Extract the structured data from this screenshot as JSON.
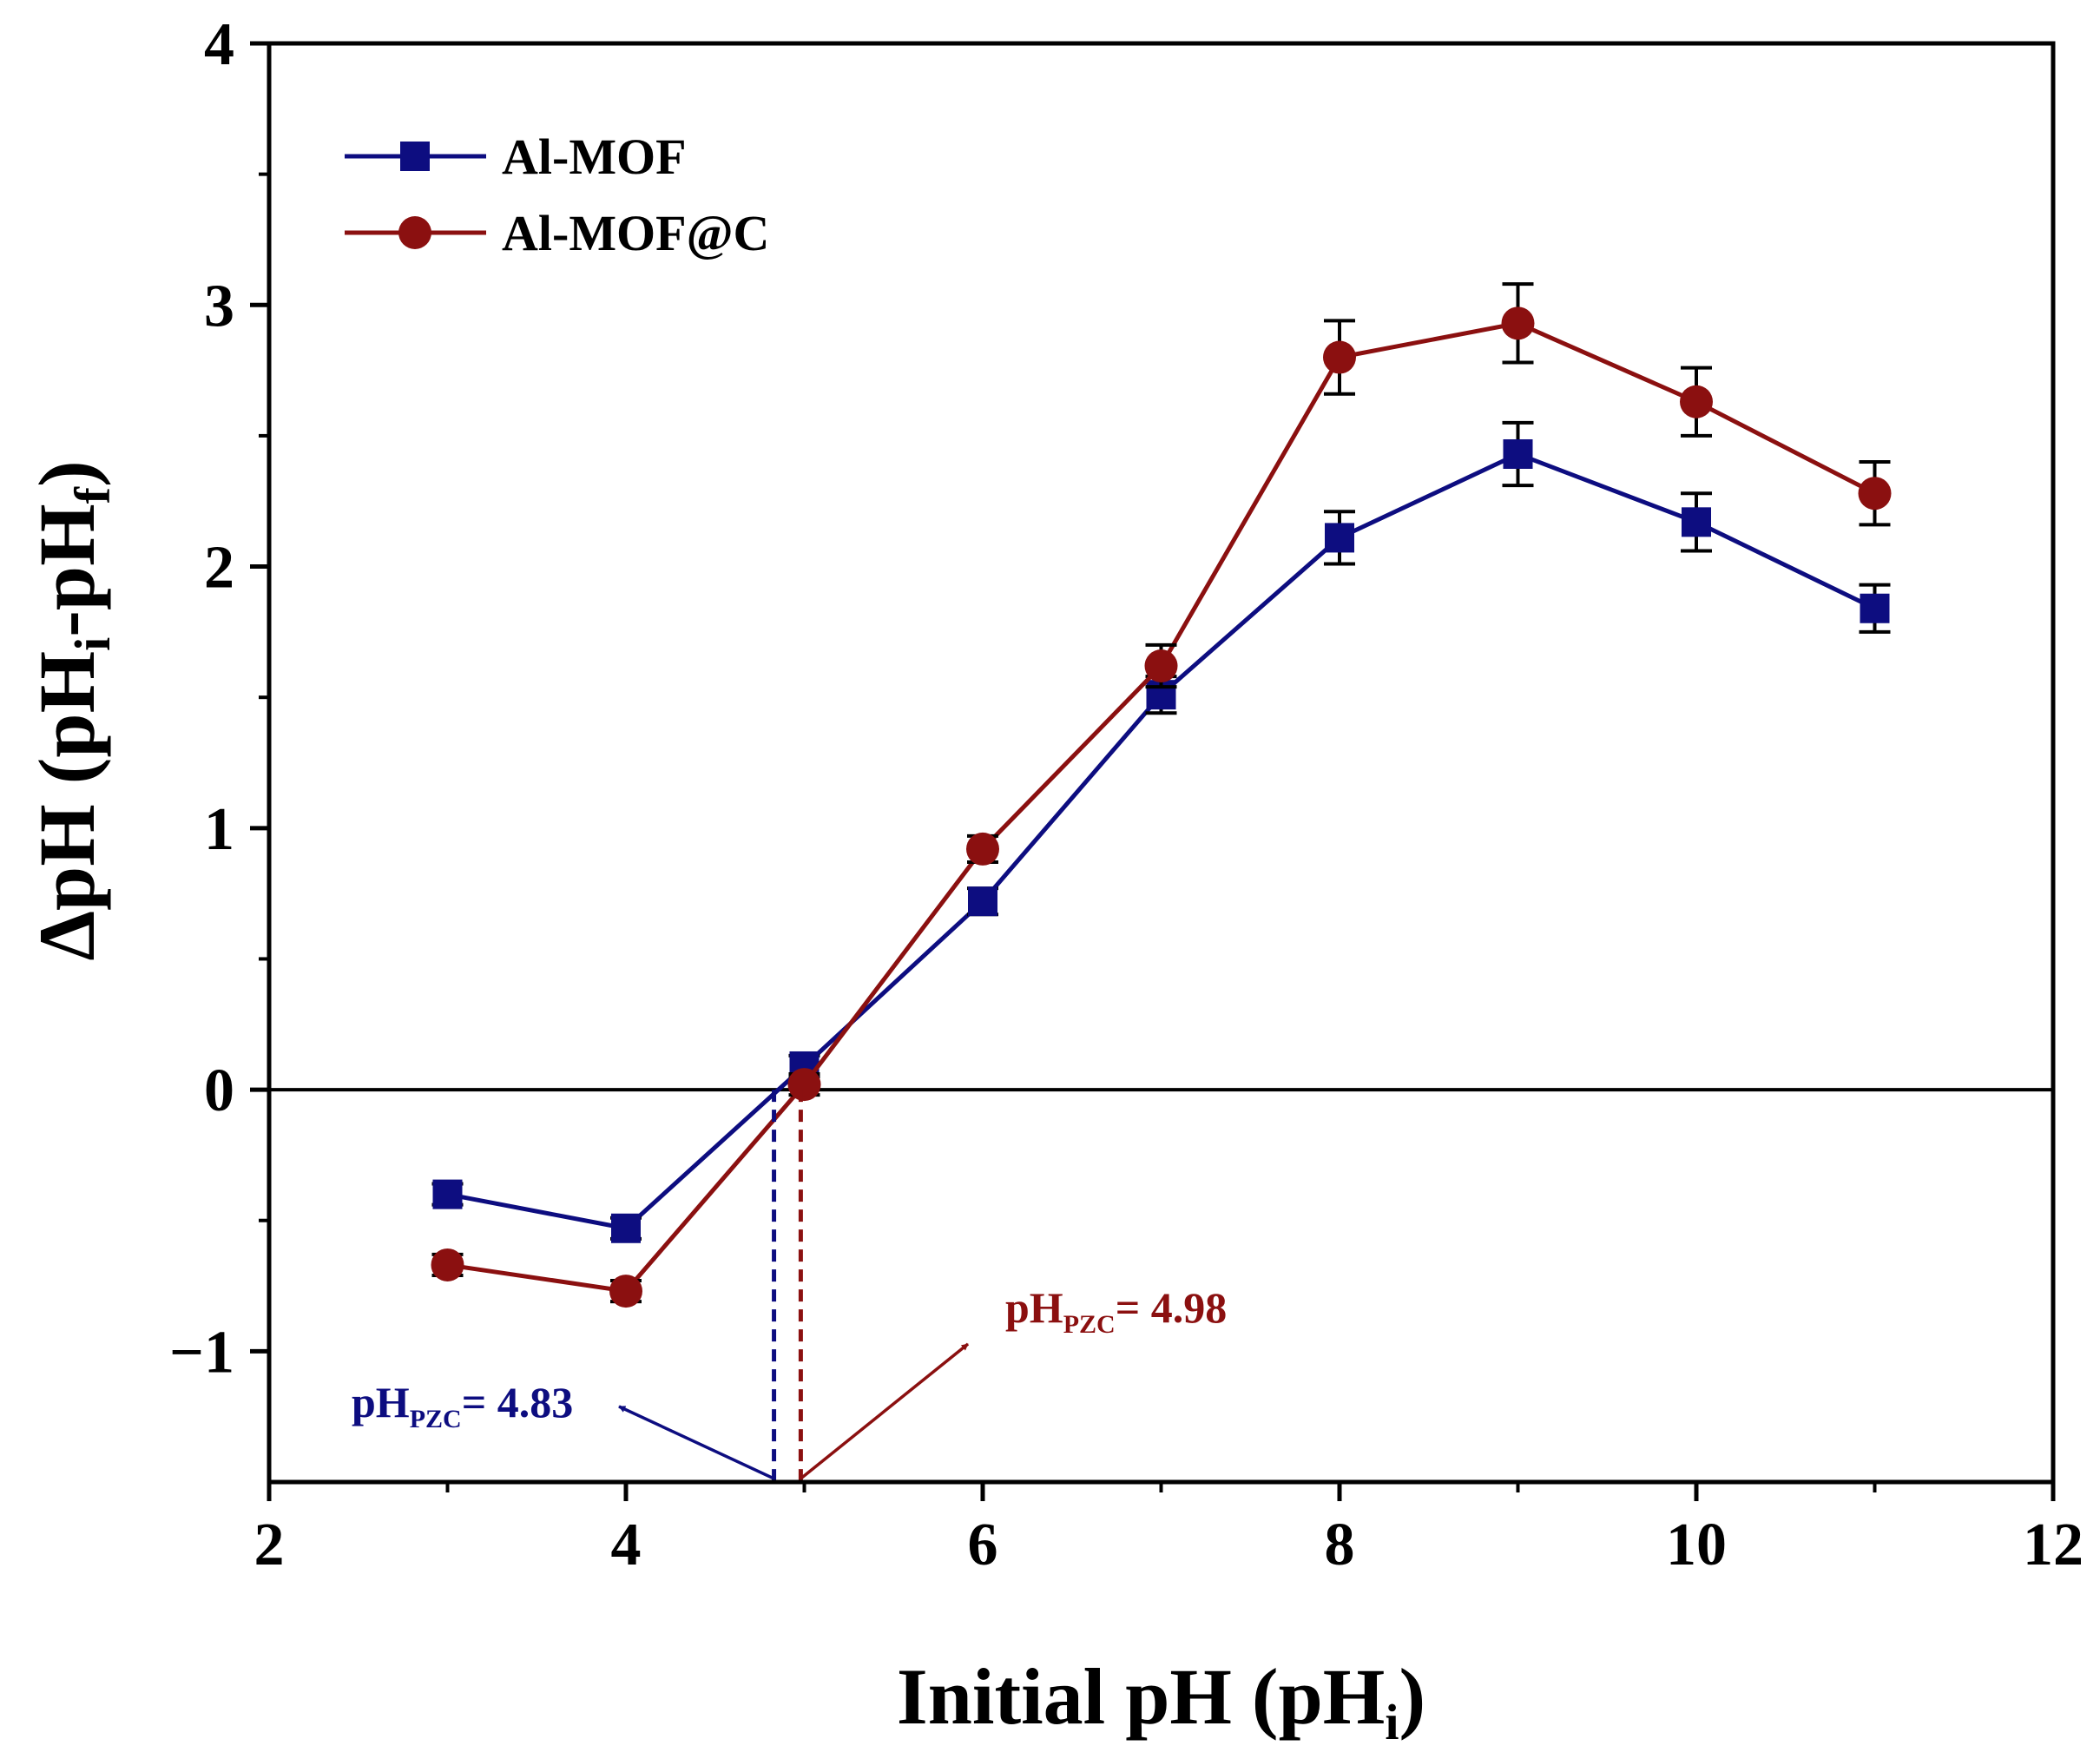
{
  "chart_data": {
    "type": "line",
    "title": "",
    "xlabel": {
      "main": "Initial pH (pH",
      "sub": "i",
      "close": ")"
    },
    "ylabel": {
      "prefix": "ΔpH (pH",
      "sub1": "i",
      "mid": "-pH",
      "sub2": "f",
      "close": ")"
    },
    "xlim": [
      2,
      12
    ],
    "ylim": [
      -1.5,
      4
    ],
    "xticks": [
      2,
      4,
      6,
      8,
      10,
      12
    ],
    "xtick_labels": [
      "2",
      "4",
      "6",
      "8",
      "10",
      "12"
    ],
    "yticks": [
      -1,
      0,
      1,
      2,
      3,
      4
    ],
    "ytick_labels": [
      "−1",
      "0",
      "1",
      "2",
      "3",
      "4"
    ],
    "y_minor_ticks": [
      -0.5,
      0.5,
      1.5,
      2.5,
      3.5
    ],
    "x_minor_ticks": [
      3,
      5,
      7,
      9,
      11
    ],
    "zero_line": 0,
    "legend_position": "top-left",
    "series": [
      {
        "name": "Al-MOF",
        "color": "#0d0d80",
        "marker": "square",
        "x": [
          3,
          4,
          5,
          6,
          7,
          8,
          9,
          10,
          11
        ],
        "values": [
          -0.4,
          -0.53,
          0.09,
          0.72,
          1.51,
          2.11,
          2.43,
          2.17,
          1.84
        ],
        "errors": [
          0.04,
          0.04,
          0.04,
          0.05,
          0.07,
          0.1,
          0.12,
          0.11,
          0.09
        ]
      },
      {
        "name": "Al-MOF@C",
        "color": "#8b1010",
        "marker": "circle",
        "x": [
          3,
          4,
          5,
          6,
          7,
          8,
          9,
          10,
          11
        ],
        "values": [
          -0.67,
          -0.77,
          0.02,
          0.92,
          1.62,
          2.8,
          2.93,
          2.63,
          2.28
        ],
        "errors": [
          0.04,
          0.04,
          0.04,
          0.05,
          0.08,
          0.14,
          0.15,
          0.13,
          0.12
        ]
      }
    ],
    "annotations": [
      {
        "series": "Al-MOF",
        "prefix": "pH",
        "sub": "PZC",
        "suffix": "= 4.83",
        "pzc": 4.83,
        "color": "#0d0d80"
      },
      {
        "series": "Al-MOF@C",
        "prefix": "pH",
        "sub": "PZC",
        "suffix": "= 4.98",
        "pzc": 4.98,
        "color": "#8b1010"
      }
    ]
  }
}
